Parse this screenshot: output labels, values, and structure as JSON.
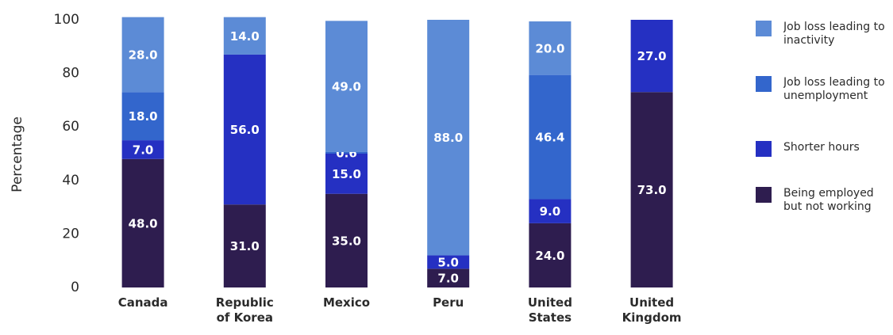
{
  "chart_data": {
    "type": "stacked_bar",
    "y_label": "Percentage",
    "categories": [
      "Canada",
      "Republic of Korea",
      "Mexico",
      "Peru",
      "United States",
      "United Kingdom"
    ],
    "series": [
      {
        "name": "Being employed but not working",
        "color": "#2e1d4f",
        "values": [
          48,
          31,
          35,
          7,
          24,
          73
        ],
        "value_labels": [
          "48.0",
          "31.0",
          "35.0",
          "7.0",
          "24.0",
          "73.0"
        ]
      },
      {
        "name": "Shorter hours",
        "color": "#2530c2",
        "values": [
          7,
          56,
          15,
          5,
          9,
          27
        ],
        "value_labels": [
          "7.0",
          "56.0",
          "15.0",
          "5.0",
          "9.0",
          "27.0"
        ]
      },
      {
        "name": "Job loss leading to unemployment",
        "color": "#3366cc",
        "values": [
          18,
          null,
          0.6,
          null,
          46.4,
          null
        ],
        "value_labels": [
          "18.0",
          null,
          "0.6",
          null,
          "46.4",
          null
        ]
      },
      {
        "name": "Job loss leading to inactivity",
        "color": "#5c8bd6",
        "values": [
          28,
          14,
          49,
          88,
          20,
          null
        ],
        "value_labels": [
          "28.0",
          "14.0",
          "49.0",
          "88.0",
          "20.0",
          null
        ]
      }
    ],
    "ylim": [
      0,
      100
    ],
    "yticks": [
      0,
      20,
      40,
      60,
      80,
      100
    ],
    "grid": false,
    "legend": "right"
  }
}
